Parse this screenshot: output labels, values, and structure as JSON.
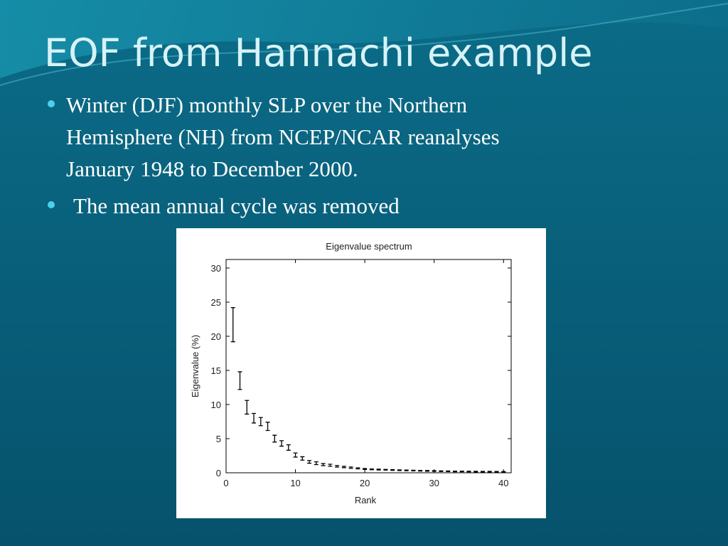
{
  "title": "EOF from Hannachi example",
  "bullets": [
    [
      "Winter  (DJF) monthly SLP over the Northern",
      "Hemisphere (NH) from NCEP/NCAR reanalyses",
      "January 1948 to December 2000."
    ],
    [
      "The mean annual cycle was removed"
    ]
  ],
  "chart_data": {
    "type": "errorbar",
    "title": "Eigenvalue spectrum",
    "x_label": "Rank",
    "y_label": "Eigenvalue (%)",
    "x": [
      1,
      2,
      3,
      4,
      5,
      6,
      7,
      8,
      9,
      10,
      11,
      12,
      13,
      14,
      15,
      16,
      17,
      18,
      19,
      20,
      21,
      22,
      23,
      24,
      25,
      26,
      27,
      28,
      29,
      30,
      31,
      32,
      33,
      34,
      35,
      36,
      37,
      38,
      39,
      40
    ],
    "values": [
      21.7,
      13.5,
      9.6,
      8.0,
      7.5,
      6.8,
      5.0,
      4.3,
      3.7,
      2.6,
      2.1,
      1.6,
      1.4,
      1.2,
      1.1,
      0.95,
      0.85,
      0.75,
      0.65,
      0.55,
      0.5,
      0.47,
      0.44,
      0.41,
      0.38,
      0.35,
      0.32,
      0.3,
      0.28,
      0.26,
      0.24,
      0.22,
      0.2,
      0.19,
      0.18,
      0.17,
      0.16,
      0.15,
      0.14,
      0.13
    ],
    "errors": [
      2.5,
      1.3,
      1.0,
      0.7,
      0.6,
      0.6,
      0.5,
      0.4,
      0.4,
      0.3,
      0.25,
      0.2,
      0.2,
      0.15,
      0.15,
      0.12,
      0.1,
      0.1,
      0.08,
      0.07,
      0.06,
      0.06,
      0.05,
      0.05,
      0.05,
      0.05,
      0.05,
      0.05,
      0.05,
      0.05,
      0.05,
      0.05,
      0.05,
      0.05,
      0.05,
      0.05,
      0.05,
      0.05,
      0.05,
      0.05
    ],
    "color": "#000000",
    "xlim": [
      0,
      41.1
    ],
    "ylim": [
      0,
      31.25
    ],
    "xticks": [
      0,
      10,
      20,
      30,
      40
    ],
    "yticks": [
      0,
      5,
      10,
      15,
      20,
      25,
      30
    ]
  }
}
